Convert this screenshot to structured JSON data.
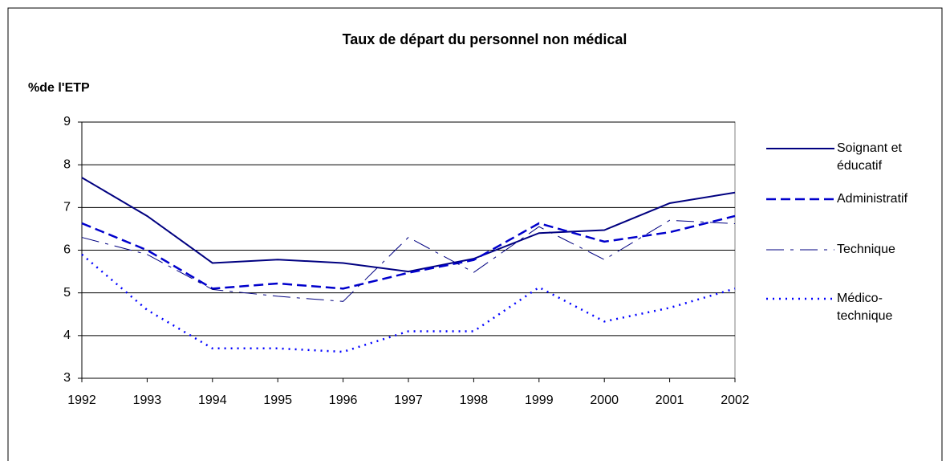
{
  "chart_data": {
    "type": "line",
    "title": "Taux de départ du personnel non médical",
    "y_label": "%de l'ETP",
    "x": [
      1992,
      1993,
      1994,
      1995,
      1996,
      1997,
      1998,
      1999,
      2000,
      2001,
      2002
    ],
    "xlim": [
      1992,
      2002
    ],
    "xticks": [
      1992,
      1993,
      1994,
      1995,
      1996,
      1997,
      1998,
      1999,
      2000,
      2001,
      2002
    ],
    "ylim": [
      3,
      9
    ],
    "yticks": [
      3,
      4,
      5,
      6,
      7,
      8,
      9
    ],
    "grid": true,
    "legend": "right",
    "series": [
      {
        "name": "Soignant et éducatif",
        "color": "#000080",
        "dash": "solid",
        "values": [
          7.7,
          6.8,
          5.7,
          5.78,
          5.7,
          5.5,
          5.8,
          6.4,
          6.47,
          7.1,
          7.35
        ]
      },
      {
        "name": "Administratif",
        "color": "#0000cc",
        "dash": "dashed",
        "values": [
          6.63,
          6.0,
          5.1,
          5.22,
          5.1,
          5.47,
          5.77,
          6.63,
          6.2,
          6.42,
          6.8
        ]
      },
      {
        "name": "Technique",
        "color": "#000080",
        "dash": "dashdot",
        "values": [
          6.3,
          5.9,
          5.08,
          4.92,
          4.8,
          6.3,
          5.48,
          6.55,
          5.78,
          6.7,
          6.62
        ]
      },
      {
        "name": "Médico-technique",
        "color": "#0000ff",
        "dash": "dotted",
        "values": [
          5.9,
          4.6,
          3.7,
          3.7,
          3.62,
          4.1,
          4.1,
          5.13,
          4.33,
          4.65,
          5.1
        ]
      }
    ]
  }
}
